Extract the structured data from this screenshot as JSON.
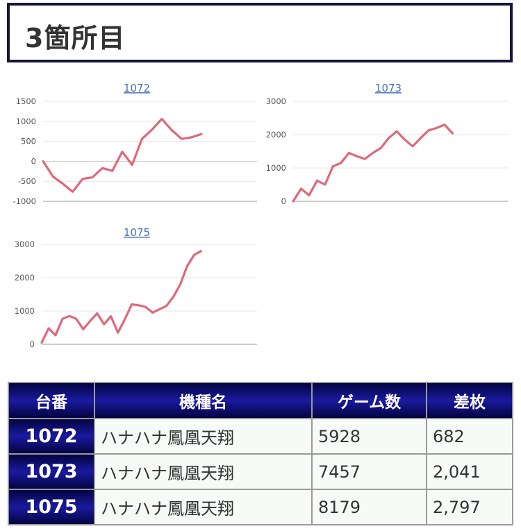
{
  "heading": "3箇所目",
  "chart_data": [
    {
      "type": "line",
      "title": "1072",
      "yticks": [
        1500,
        1000,
        500,
        0,
        -500,
        -1000
      ],
      "ylim": [
        -1000,
        1500
      ],
      "y": [
        0,
        -380,
        -560,
        -760,
        -440,
        -400,
        -170,
        -240,
        240,
        -90,
        560,
        790,
        1060,
        780,
        560,
        600,
        682
      ]
    },
    {
      "type": "line",
      "title": "1073",
      "yticks": [
        3000,
        2000,
        1000,
        0
      ],
      "ylim": [
        0,
        3000
      ],
      "y": [
        0,
        380,
        180,
        620,
        500,
        1050,
        1150,
        1450,
        1350,
        1270,
        1450,
        1600,
        1900,
        2100,
        1850,
        1650,
        1900,
        2130,
        2200,
        2300,
        2041
      ]
    },
    {
      "type": "line",
      "title": "1075",
      "yticks": [
        3000,
        2000,
        1000,
        0
      ],
      "ylim": [
        0,
        3000
      ],
      "y": [
        50,
        480,
        270,
        760,
        850,
        760,
        450,
        700,
        930,
        600,
        840,
        350,
        750,
        1200,
        1170,
        1120,
        950,
        1050,
        1150,
        1420,
        1800,
        2350,
        2680,
        2797
      ]
    }
  ],
  "table": {
    "headers": [
      "台番",
      "機種名",
      "ゲーム数",
      "差枚"
    ],
    "rows": [
      [
        "1072",
        "ハナハナ鳳凰天翔",
        "5928",
        "682"
      ],
      [
        "1073",
        "ハナハナ鳳凰天翔",
        "7457",
        "2,041"
      ],
      [
        "1075",
        "ハナハナ鳳凰天翔",
        "8179",
        "2,797"
      ]
    ]
  }
}
